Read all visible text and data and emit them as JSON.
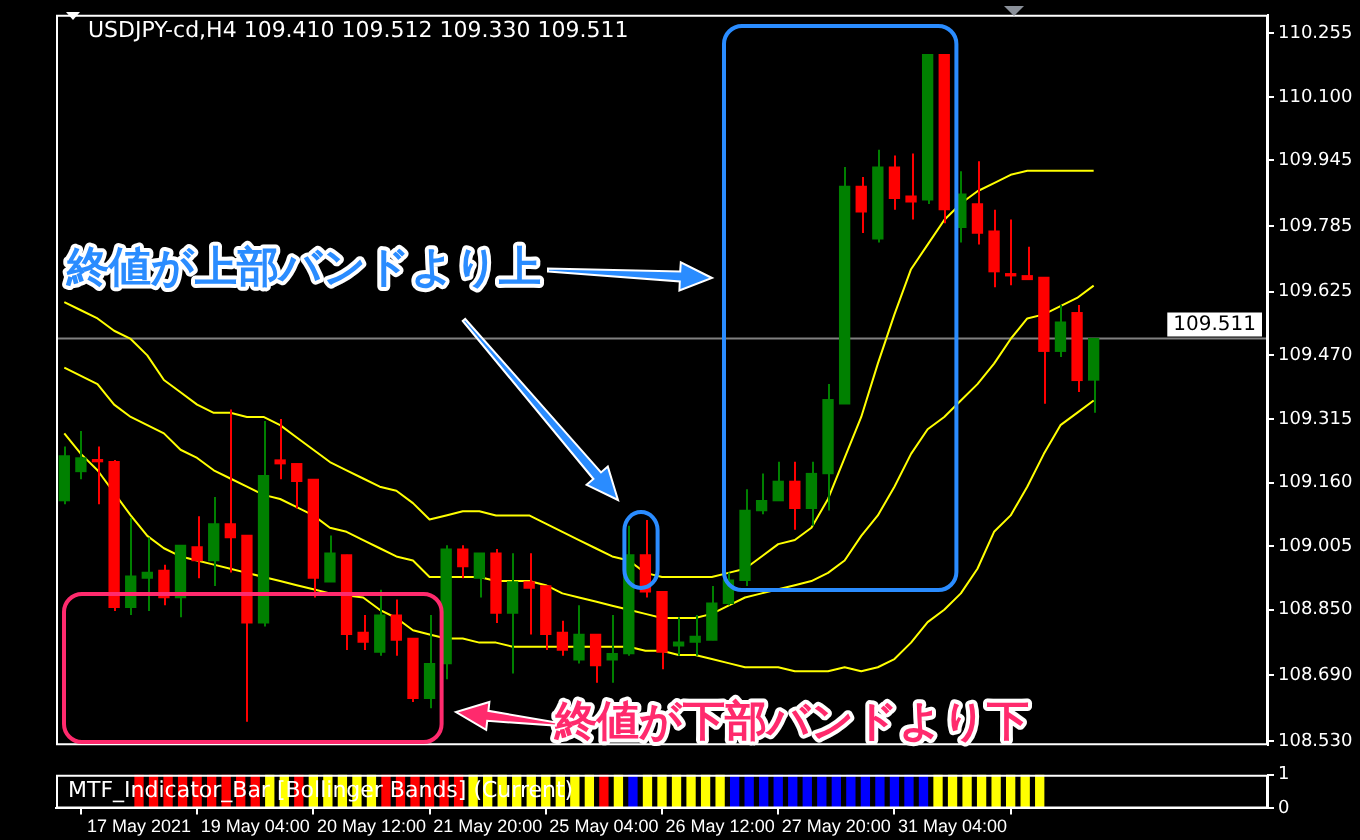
{
  "chart_data": [
    {
      "type": "candlestick",
      "title": "USDJPY-cd,H4 109.410 109.512 109.330 109.511",
      "categories": [
        null,
        null,
        null,
        null,
        null,
        null,
        null,
        null,
        null,
        null,
        null,
        null,
        null,
        null,
        null,
        null,
        null,
        null,
        null,
        null,
        null,
        null,
        null,
        null,
        null,
        null,
        null,
        null,
        null,
        null,
        null,
        null,
        null,
        null,
        null,
        null,
        null,
        null,
        null,
        null,
        null,
        null,
        null,
        null,
        null,
        null,
        null,
        null,
        null,
        null,
        null,
        null,
        null,
        null,
        null,
        null,
        null,
        null,
        null,
        null,
        null,
        null,
        null,
        null,
        null,
        null,
        null,
        null,
        null,
        null,
        null,
        null,
        null
      ],
      "ohlc": [
        [
          109.116,
          109.248,
          109.107,
          109.225
        ],
        [
          109.187,
          109.286,
          109.168,
          109.22
        ],
        [
          109.215,
          109.248,
          109.107,
          109.211
        ],
        [
          109.211,
          109.215,
          108.847,
          108.856
        ],
        [
          108.856,
          109.074,
          108.837,
          108.932
        ],
        [
          108.927,
          109.026,
          108.847,
          108.941
        ],
        [
          108.946,
          108.96,
          108.861,
          108.88
        ],
        [
          108.88,
          109.007,
          108.832,
          109.007
        ],
        [
          109.003,
          109.078,
          108.927,
          108.97
        ],
        [
          108.97,
          109.125,
          108.908,
          109.059
        ],
        [
          109.059,
          109.338,
          108.941,
          109.026
        ],
        [
          109.031,
          109.031,
          108.577,
          108.818
        ],
        [
          108.818,
          109.31,
          108.809,
          109.177
        ],
        [
          109.215,
          109.315,
          109.168,
          109.206
        ],
        [
          109.206,
          109.206,
          109.097,
          109.163
        ],
        [
          109.168,
          109.168,
          108.88,
          108.927
        ],
        [
          108.918,
          109.031,
          108.918,
          108.988
        ],
        [
          108.984,
          108.984,
          108.752,
          108.79
        ],
        [
          108.795,
          108.837,
          108.752,
          108.771
        ],
        [
          108.747,
          108.899,
          108.738,
          108.837
        ],
        [
          108.837,
          108.875,
          108.738,
          108.776
        ],
        [
          108.78,
          108.78,
          108.625,
          108.634
        ],
        [
          108.634,
          108.837,
          108.61,
          108.719
        ],
        [
          108.719,
          109.007,
          108.681,
          108.998
        ],
        [
          108.998,
          109.007,
          108.927,
          108.955
        ],
        [
          108.927,
          108.988,
          108.88,
          108.988
        ],
        [
          108.988,
          108.998,
          108.818,
          108.842
        ],
        [
          108.842,
          108.988,
          108.695,
          108.918
        ],
        [
          108.918,
          108.988,
          108.79,
          108.903
        ],
        [
          108.908,
          108.908,
          108.752,
          108.79
        ],
        [
          108.795,
          108.823,
          108.738,
          108.752
        ],
        [
          108.728,
          108.861,
          108.719,
          108.79
        ],
        [
          108.79,
          108.79,
          108.672,
          108.714
        ],
        [
          108.728,
          108.837,
          108.672,
          108.743
        ],
        [
          108.743,
          109.055,
          108.738,
          108.984
        ],
        [
          108.984,
          109.069,
          108.88,
          108.894
        ],
        [
          108.894,
          108.894,
          108.705,
          108.747
        ],
        [
          108.762,
          108.832,
          108.738,
          108.771
        ],
        [
          108.771,
          108.837,
          108.738,
          108.785
        ],
        [
          108.776,
          108.908,
          108.776,
          108.866
        ],
        [
          108.866,
          108.941,
          108.861,
          108.922
        ],
        [
          108.922,
          109.144,
          108.908,
          109.092
        ],
        [
          109.092,
          109.182,
          109.083,
          109.116
        ],
        [
          109.116,
          109.211,
          109.116,
          109.163
        ],
        [
          109.163,
          109.211,
          109.045,
          109.097
        ],
        [
          109.097,
          109.211,
          109.055,
          109.182
        ],
        [
          109.182,
          109.4,
          109.092,
          109.362
        ],
        [
          109.352,
          109.929,
          109.352,
          109.882
        ],
        [
          109.882,
          109.905,
          109.768,
          109.82
        ],
        [
          109.754,
          109.971,
          109.745,
          109.929
        ],
        [
          109.929,
          109.957,
          109.825,
          109.853
        ],
        [
          109.858,
          109.962,
          109.801,
          109.844
        ],
        [
          109.849,
          110.203,
          109.839,
          110.203
        ],
        [
          110.203,
          110.203,
          109.792,
          109.825
        ],
        [
          109.782,
          109.919,
          109.745,
          109.863
        ],
        [
          109.839,
          109.943,
          109.74,
          109.768
        ],
        [
          109.773,
          109.825,
          109.636,
          109.674
        ],
        [
          109.669,
          109.801,
          109.641,
          109.664
        ],
        [
          109.664,
          109.735,
          109.655,
          109.655
        ],
        [
          109.66,
          109.66,
          109.352,
          109.48
        ],
        [
          109.48,
          109.593,
          109.466,
          109.551
        ],
        [
          109.574,
          109.593,
          109.381,
          109.409
        ],
        [
          109.41,
          109.512,
          109.33,
          109.511
        ],
        null,
        null,
        null,
        null,
        null,
        null,
        null,
        null,
        null,
        null
      ],
      "colors": [
        "#008000",
        "#008000",
        "#ff0000",
        "#ff0000",
        "#008000",
        "#008000",
        "#ff0000",
        "#008000",
        "#ff0000",
        "#008000",
        "#ff0000",
        "#ff0000",
        "#008000",
        "#ff0000",
        "#ff0000",
        "#ff0000",
        "#008000",
        "#ff0000",
        "#ff0000",
        "#008000",
        "#ff0000",
        "#ff0000",
        "#008000",
        "#008000",
        "#ff0000",
        "#008000",
        "#ff0000",
        "#008000",
        "#ff0000",
        "#ff0000",
        "#ff0000",
        "#008000",
        "#ff0000",
        "#008000",
        "#008000",
        "#ff0000",
        "#ff0000",
        "#008000",
        "#008000",
        "#008000",
        "#008000",
        "#008000",
        "#008000",
        "#008000",
        "#ff0000",
        "#008000",
        "#008000",
        "#008000",
        "#ff0000",
        "#008000",
        "#ff0000",
        "#ff0000",
        "#008000",
        "#ff0000",
        "#008000",
        "#ff0000",
        "#ff0000",
        "#ff0000",
        "#ff0000",
        "#ff0000",
        "#008000",
        "#ff0000",
        "#008000",
        null,
        null,
        null,
        null,
        null,
        null,
        null,
        null,
        null,
        null
      ],
      "series": [
        {
          "type": "line",
          "color": "#ffff00",
          "values": [
            109.6,
            109.58,
            109.56,
            109.53,
            109.51,
            109.47,
            109.41,
            109.38,
            109.35,
            109.33,
            109.33,
            109.32,
            109.32,
            109.3,
            109.27,
            109.24,
            109.21,
            109.19,
            109.17,
            109.15,
            109.14,
            109.11,
            109.07,
            109.08,
            109.09,
            109.09,
            109.08,
            109.08,
            109.08,
            109.06,
            109.04,
            109.02,
            109.0,
            108.98,
            108.97,
            108.94,
            108.93,
            108.93,
            108.93,
            108.93,
            108.94,
            108.95,
            108.98,
            109.01,
            109.02,
            109.05,
            109.12,
            109.22,
            109.32,
            109.45,
            109.57,
            109.68,
            109.74,
            109.8,
            109.84,
            109.87,
            109.89,
            109.91,
            109.92,
            109.92,
            109.92,
            109.92,
            109.92,
            null,
            null,
            null,
            null,
            null,
            null,
            null,
            null,
            null,
            null
          ]
        },
        {
          "type": "line",
          "color": "#ffff00",
          "values": [
            109.44,
            109.42,
            109.4,
            109.35,
            109.32,
            109.3,
            109.28,
            109.24,
            109.22,
            109.19,
            109.17,
            109.15,
            109.13,
            109.12,
            109.1,
            109.08,
            109.05,
            109.04,
            109.02,
            109.0,
            108.98,
            108.97,
            108.93,
            108.93,
            108.93,
            108.93,
            108.92,
            108.92,
            108.92,
            108.91,
            108.89,
            108.88,
            108.87,
            108.86,
            108.85,
            108.84,
            108.83,
            108.83,
            108.83,
            108.84,
            108.86,
            108.88,
            108.89,
            108.9,
            108.91,
            108.92,
            108.94,
            108.97,
            109.03,
            109.08,
            109.15,
            109.23,
            109.29,
            109.32,
            109.36,
            109.4,
            109.45,
            109.51,
            109.56,
            109.57,
            109.59,
            109.61,
            109.64,
            null,
            null,
            null,
            null,
            null,
            null,
            null,
            null,
            null,
            null
          ]
        },
        {
          "type": "line",
          "color": "#ffff00",
          "values": [
            109.28,
            109.23,
            109.19,
            null,
            109.08,
            109.03,
            109.0,
            108.98,
            108.97,
            108.96,
            108.95,
            108.94,
            108.93,
            108.92,
            108.91,
            108.9,
            108.89,
            null,
            108.88,
            108.85,
            108.83,
            108.8,
            108.79,
            108.78,
            108.78,
            108.77,
            108.77,
            108.76,
            108.76,
            108.76,
            108.76,
            108.76,
            108.76,
            108.76,
            108.76,
            108.75,
            108.75,
            108.74,
            108.74,
            108.73,
            108.72,
            108.71,
            108.71,
            108.71,
            108.7,
            108.7,
            108.7,
            108.71,
            108.7,
            108.71,
            108.73,
            108.77,
            108.82,
            108.85,
            108.89,
            108.95,
            109.04,
            109.08,
            109.15,
            109.23,
            109.3,
            109.33,
            109.36,
            null,
            null,
            null,
            null,
            null,
            null,
            null,
            null,
            null,
            null
          ]
        }
      ],
      "ylim": [
        108.52,
        110.3
      ],
      "yticks": [
        {
          "value": 110.255,
          "label": "110.255"
        },
        {
          "value": 110.1,
          "label": "110.100"
        },
        {
          "value": 109.945,
          "label": "109.945"
        },
        {
          "value": 109.785,
          "label": "109.785"
        },
        {
          "value": 109.625,
          "label": "109.625"
        },
        {
          "value": 109.47,
          "label": "109.470"
        },
        {
          "value": 109.315,
          "label": "109.315"
        },
        {
          "value": 109.16,
          "label": "109.160"
        },
        {
          "value": 109.005,
          "label": "109.005"
        },
        {
          "value": 108.85,
          "label": "108.850"
        },
        {
          "value": 108.69,
          "label": "108.690"
        },
        {
          "value": 108.53,
          "label": "108.530"
        }
      ],
      "ref_lines": [
        {
          "axis": "y",
          "value": 109.511,
          "label": "109.511",
          "color": "#808080"
        }
      ],
      "annotations": [
        "終値が上部バンドより上",
        "終値が下部バンドより下"
      ],
      "tick_labels": "y"
    },
    {
      "type": "bar",
      "title": "MTF_Indicator_Bar [Bollinger Bands] (Current)",
      "categories": [
        "17 May 2021",
        null,
        null,
        null,
        null,
        null,
        null,
        null,
        "19 May 04:00",
        null,
        null,
        null,
        null,
        null,
        null,
        null,
        "20 May 12:00",
        null,
        null,
        null,
        null,
        null,
        null,
        null,
        "21 May 20:00",
        null,
        null,
        null,
        null,
        null,
        null,
        null,
        "25 May 04:00",
        null,
        null,
        null,
        null,
        null,
        null,
        null,
        "26 May 12:00",
        null,
        null,
        null,
        null,
        null,
        null,
        null,
        "27 May 20:00",
        null,
        null,
        null,
        null,
        null,
        null,
        null,
        "31 May 04:00",
        null,
        null,
        null,
        null,
        null,
        null,
        null,
        null,
        null,
        null,
        null,
        null,
        null,
        null,
        null,
        null
      ],
      "values": [
        1,
        1,
        1,
        1,
        1,
        1,
        1,
        1,
        1,
        1,
        1,
        1,
        1,
        1,
        1,
        1,
        1,
        1,
        1,
        1,
        1,
        1,
        1,
        1,
        1,
        1,
        1,
        1,
        1,
        1,
        1,
        1,
        1,
        1,
        1,
        1,
        1,
        1,
        1,
        1,
        1,
        1,
        1,
        1,
        1,
        1,
        1,
        1,
        1,
        1,
        1,
        1,
        1,
        1,
        1,
        1,
        1,
        1,
        1,
        1,
        1,
        1,
        1,
        null,
        null,
        null,
        null,
        null,
        null,
        null,
        null,
        null,
        null
      ],
      "colors": [
        "#ff0000",
        "#ff0000",
        "#ff0000",
        "#ff0000",
        "#ff0000",
        "#ff0000",
        "#ff0000",
        "#ff0000",
        "#ff0000",
        "#ffff00",
        "#ffff00",
        "#ff0000",
        "#ffff00",
        "#ffff00",
        "#ffff00",
        "#ffff00",
        "#ffff00",
        "#ff0000",
        "#ff0000",
        "#ff0000",
        "#ff0000",
        "#ff0000",
        "#ff0000",
        "#ffff00",
        "#ffff00",
        "#ffff00",
        "#ffff00",
        "#ffff00",
        "#ffff00",
        "#ffff00",
        "#ffff00",
        "#ffff00",
        "#ff0000",
        "#ffff00",
        "#0000ff",
        "#ffff00",
        "#ffff00",
        "#ffff00",
        "#ffff00",
        "#ffff00",
        "#ffff00",
        "#0000ff",
        "#0000ff",
        "#0000ff",
        "#0000ff",
        "#0000ff",
        "#0000ff",
        "#0000ff",
        "#0000ff",
        "#0000ff",
        "#0000ff",
        "#0000ff",
        "#0000ff",
        "#0000ff",
        "#0000ff",
        "#ffff00",
        "#ffff00",
        "#ffff00",
        "#ffff00",
        "#ffff00",
        "#ffff00",
        "#ffff00",
        "#ffff00",
        null,
        null,
        null,
        null,
        null,
        null,
        null,
        null,
        null,
        null
      ],
      "ylim": [
        0,
        1
      ],
      "yticks": [
        0,
        1
      ]
    }
  ]
}
